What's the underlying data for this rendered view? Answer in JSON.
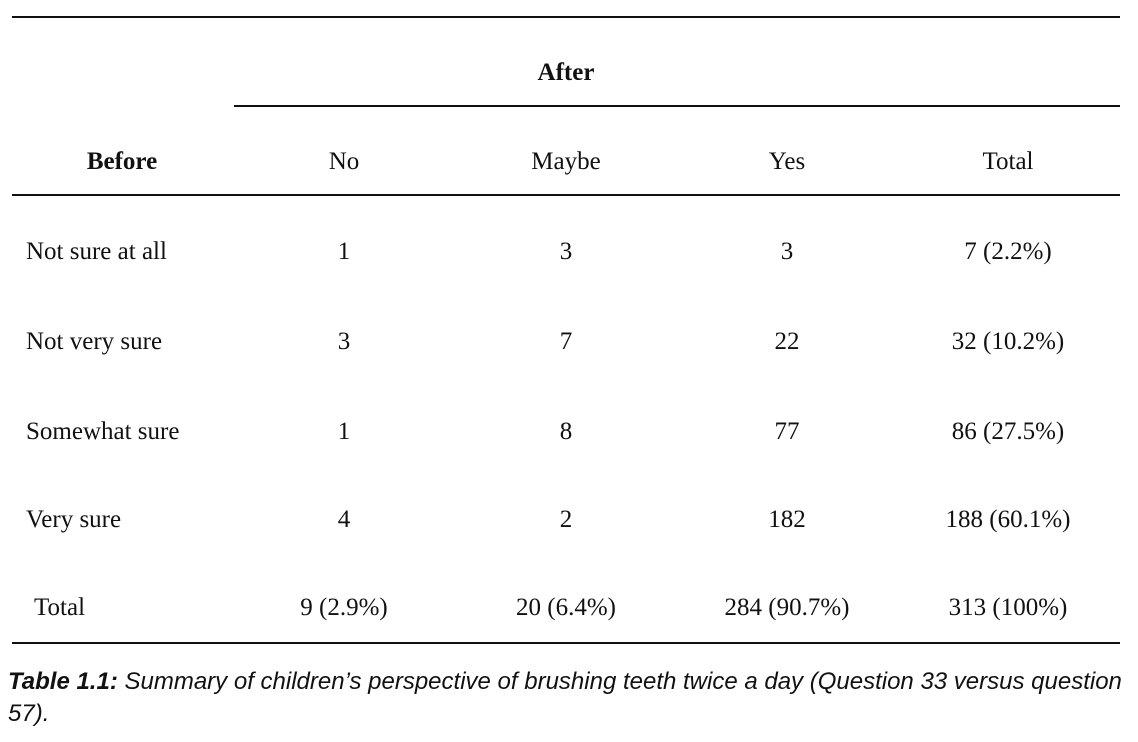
{
  "table": {
    "group_header": "After",
    "row_header_label": "Before",
    "columns": [
      "No",
      "Maybe",
      "Yes",
      "Total"
    ],
    "rows": [
      {
        "label": "Not sure at all",
        "cells": [
          "1",
          "3",
          "3",
          "7 (2.2%)"
        ]
      },
      {
        "label": "Not very sure",
        "cells": [
          "3",
          "7",
          "22",
          "32 (10.2%)"
        ]
      },
      {
        "label": "Somewhat sure",
        "cells": [
          "1",
          "8",
          "77",
          "86 (27.5%)"
        ]
      },
      {
        "label": "Very sure",
        "cells": [
          "4",
          "2",
          "182",
          "188 (60.1%)"
        ]
      },
      {
        "label": "Total",
        "cells": [
          "9 (2.9%)",
          "20 (6.4%)",
          "284 (90.7%)",
          "313 (100%)"
        ]
      }
    ]
  },
  "caption": {
    "label": "Table 1.1:",
    "text": " Summary of children’s perspective of brushing teeth twice a day (Question 33 versus question 57)."
  }
}
